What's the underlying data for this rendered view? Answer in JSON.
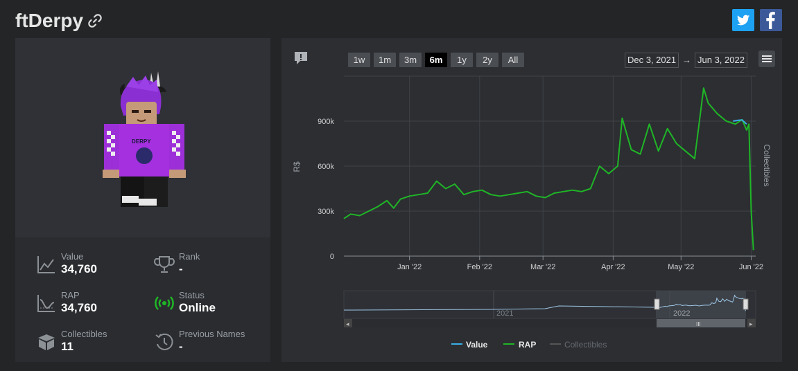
{
  "profile": {
    "username": "ftDerpy",
    "link_icon": "link-icon",
    "share": {
      "twitter_icon": "twitter-icon",
      "facebook_icon": "facebook-icon"
    }
  },
  "stats": {
    "value_label": "Value",
    "value": "34,760",
    "rank_label": "Rank",
    "rank": "-",
    "rap_label": "RAP",
    "rap": "34,760",
    "status_label": "Status",
    "status": "Online",
    "collectibles_label": "Collectibles",
    "collectibles": "11",
    "previous_names_label": "Previous Names",
    "previous_names": "-"
  },
  "chart_controls": {
    "ranges": [
      "1w",
      "1m",
      "3m",
      "6m",
      "1y",
      "2y",
      "All"
    ],
    "active_range": "6m",
    "date_from": "Dec 3, 2021",
    "date_arrow": "→",
    "date_to": "Jun 3, 2022"
  },
  "colors": {
    "value": "#3ab0e8",
    "rap": "#1fb626",
    "collectibles": "#555555",
    "status_online": "#1fb626"
  },
  "chart_data": {
    "type": "line",
    "ylabel": "R$",
    "ylabel_right": "Collectibles",
    "y_ticks": [
      "0",
      "300k",
      "600k",
      "900k"
    ],
    "ylim": [
      0,
      1200000
    ],
    "x_ticks": [
      "Jan '22",
      "Feb '22",
      "Mar '22",
      "Apr '22",
      "May '22",
      "Jun '22"
    ],
    "x_tick_dates": [
      "2022-01-01",
      "2022-02-01",
      "2022-03-01",
      "2022-04-01",
      "2022-05-01",
      "2022-06-01"
    ],
    "xlim": [
      "2021-12-03",
      "2022-06-03"
    ],
    "grid": true,
    "legend_position": "bottom",
    "series": [
      {
        "name": "RAP",
        "x": [
          "2021-12-03",
          "2021-12-06",
          "2021-12-10",
          "2021-12-14",
          "2021-12-18",
          "2021-12-22",
          "2021-12-25",
          "2021-12-28",
          "2022-01-01",
          "2022-01-05",
          "2022-01-09",
          "2022-01-13",
          "2022-01-17",
          "2022-01-21",
          "2022-01-25",
          "2022-01-29",
          "2022-02-02",
          "2022-02-06",
          "2022-02-10",
          "2022-02-14",
          "2022-02-18",
          "2022-02-22",
          "2022-02-26",
          "2022-03-02",
          "2022-03-06",
          "2022-03-10",
          "2022-03-14",
          "2022-03-18",
          "2022-03-22",
          "2022-03-26",
          "2022-03-30",
          "2022-04-03",
          "2022-04-05",
          "2022-04-09",
          "2022-04-13",
          "2022-04-17",
          "2022-04-21",
          "2022-04-25",
          "2022-04-29",
          "2022-05-03",
          "2022-05-07",
          "2022-05-11",
          "2022-05-13",
          "2022-05-17",
          "2022-05-21",
          "2022-05-25",
          "2022-05-28",
          "2022-05-30",
          "2022-05-31",
          "2022-06-01",
          "2022-06-02"
        ],
        "values": [
          250000,
          280000,
          270000,
          300000,
          330000,
          370000,
          320000,
          380000,
          400000,
          410000,
          420000,
          500000,
          450000,
          480000,
          410000,
          430000,
          440000,
          410000,
          400000,
          410000,
          420000,
          430000,
          400000,
          390000,
          420000,
          430000,
          440000,
          430000,
          450000,
          600000,
          550000,
          600000,
          920000,
          710000,
          680000,
          880000,
          700000,
          850000,
          750000,
          700000,
          650000,
          1120000,
          1020000,
          950000,
          900000,
          880000,
          910000,
          840000,
          880000,
          300000,
          40000
        ]
      },
      {
        "name": "Value",
        "x": [
          "2022-05-24",
          "2022-05-26",
          "2022-05-28",
          "2022-05-30"
        ],
        "values": [
          900000,
          905000,
          908000,
          880000
        ]
      },
      {
        "name": "Collectibles",
        "x": [],
        "values": []
      }
    ],
    "navigator": {
      "labels": [
        "2021",
        "2022"
      ]
    }
  }
}
